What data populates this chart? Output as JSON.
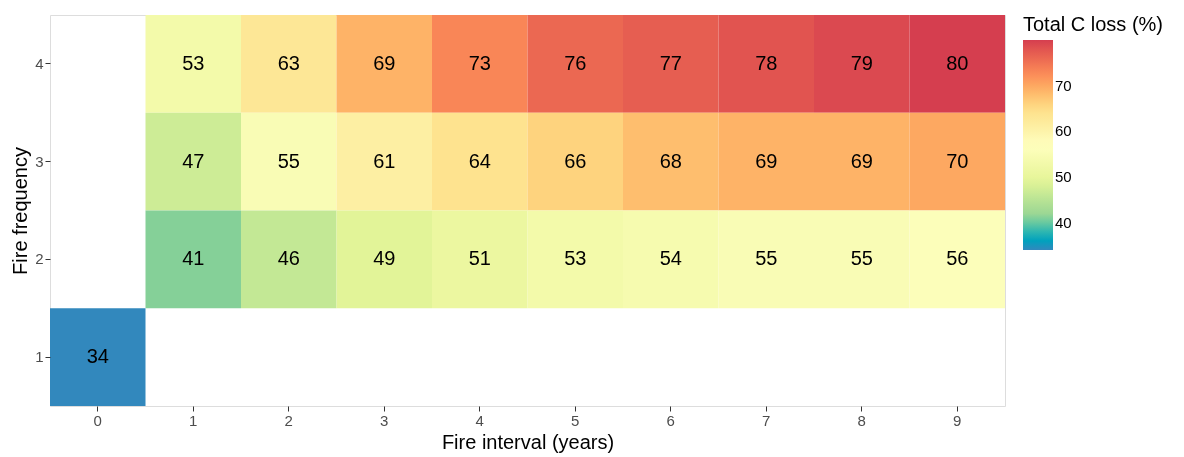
{
  "chart_data": {
    "type": "heatmap",
    "xlabel": "Fire interval (years)",
    "ylabel": "Fire frequency",
    "legend_title": "Total C loss (%)",
    "categories": [
      "0",
      "1",
      "2",
      "3",
      "4",
      "5",
      "6",
      "7",
      "8",
      "9"
    ],
    "y_categories": [
      "4",
      "3",
      "2",
      "1"
    ],
    "cells": [
      [
        null,
        53,
        63,
        69,
        73,
        76,
        77,
        78,
        79,
        80
      ],
      [
        null,
        47,
        55,
        61,
        64,
        66,
        68,
        69,
        69,
        70
      ],
      [
        null,
        41,
        46,
        49,
        51,
        53,
        54,
        55,
        55,
        56
      ],
      [
        34,
        null,
        null,
        null,
        null,
        null,
        null,
        null,
        null,
        null
      ]
    ],
    "clim": [
      34,
      80
    ],
    "cticks": [
      40,
      50,
      60,
      70
    ],
    "data_labels": true,
    "grid": false
  }
}
